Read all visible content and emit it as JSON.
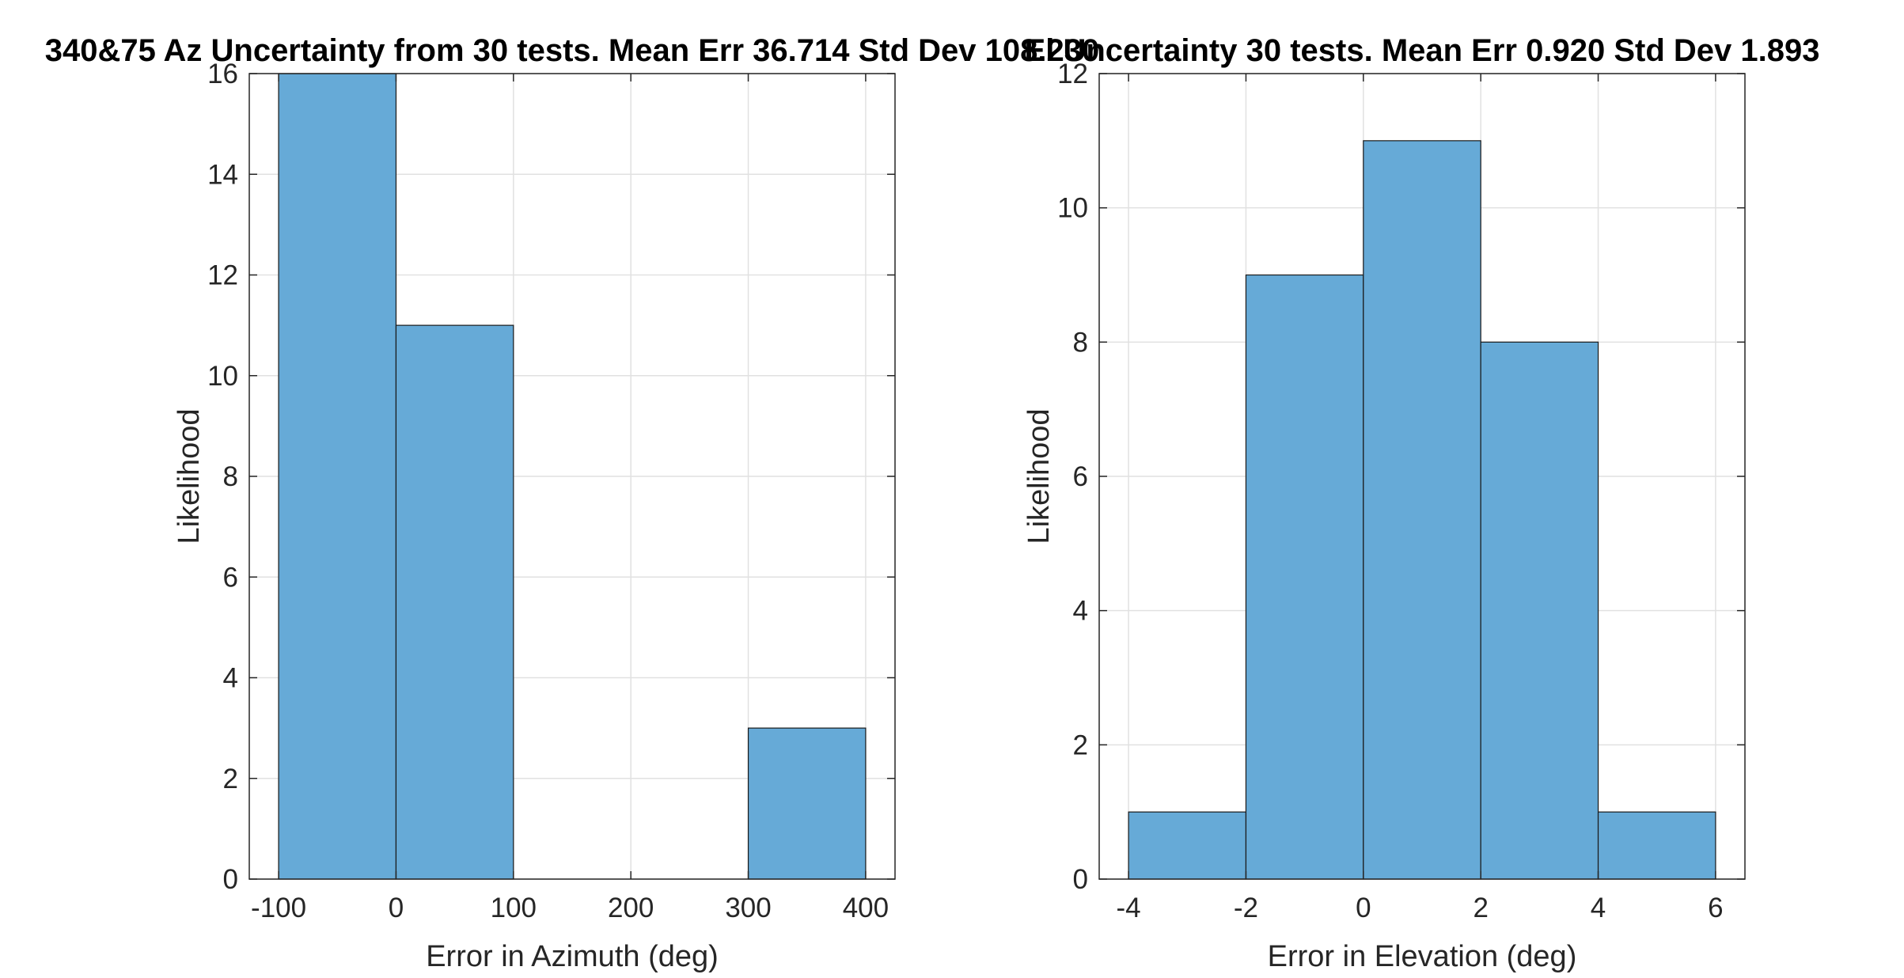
{
  "colors": {
    "bar_fill": "#66aad7",
    "bar_edge": "#1a1a1a",
    "axis": "#262626",
    "grid": "#e1e1e1",
    "background": "#ffffff"
  },
  "chart_data": [
    {
      "type": "bar",
      "title": "340&75 Az Uncertainty from 30 tests. Mean Err 36.714 Std Dev 108.230",
      "xlabel": "Error in Azimuth (deg)",
      "ylabel": "Likelihood",
      "bin_edges": [
        -100,
        0,
        100,
        200,
        300,
        400
      ],
      "values": [
        16,
        11,
        0,
        0,
        3
      ],
      "xlim": [
        -125,
        425
      ],
      "ylim": [
        0,
        16
      ],
      "xticks": [
        -100,
        0,
        100,
        200,
        300,
        400
      ],
      "xtick_labels": [
        "-100",
        "0",
        "100",
        "200",
        "300",
        "400"
      ],
      "yticks": [
        0,
        2,
        4,
        6,
        8,
        10,
        12,
        14,
        16
      ],
      "ytick_labels": [
        "0",
        "2",
        "4",
        "6",
        "8",
        "10",
        "12",
        "14",
        "16"
      ],
      "grid": true
    },
    {
      "type": "bar",
      "title": "El Uncertainty 30 tests. Mean Err 0.920 Std Dev 1.893",
      "xlabel": "Error in Elevation (deg)",
      "ylabel": "Likelihood",
      "bin_edges": [
        -4,
        -2,
        0,
        2,
        4,
        6
      ],
      "values": [
        1,
        9,
        11,
        8,
        1
      ],
      "xlim": [
        -4.5,
        6.5
      ],
      "ylim": [
        0,
        12
      ],
      "xticks": [
        -4,
        -2,
        0,
        2,
        4,
        6
      ],
      "xtick_labels": [
        "-4",
        "-2",
        "0",
        "2",
        "4",
        "6"
      ],
      "yticks": [
        0,
        2,
        4,
        6,
        8,
        10,
        12
      ],
      "ytick_labels": [
        "0",
        "2",
        "4",
        "6",
        "8",
        "10",
        "12"
      ],
      "grid": true
    }
  ]
}
